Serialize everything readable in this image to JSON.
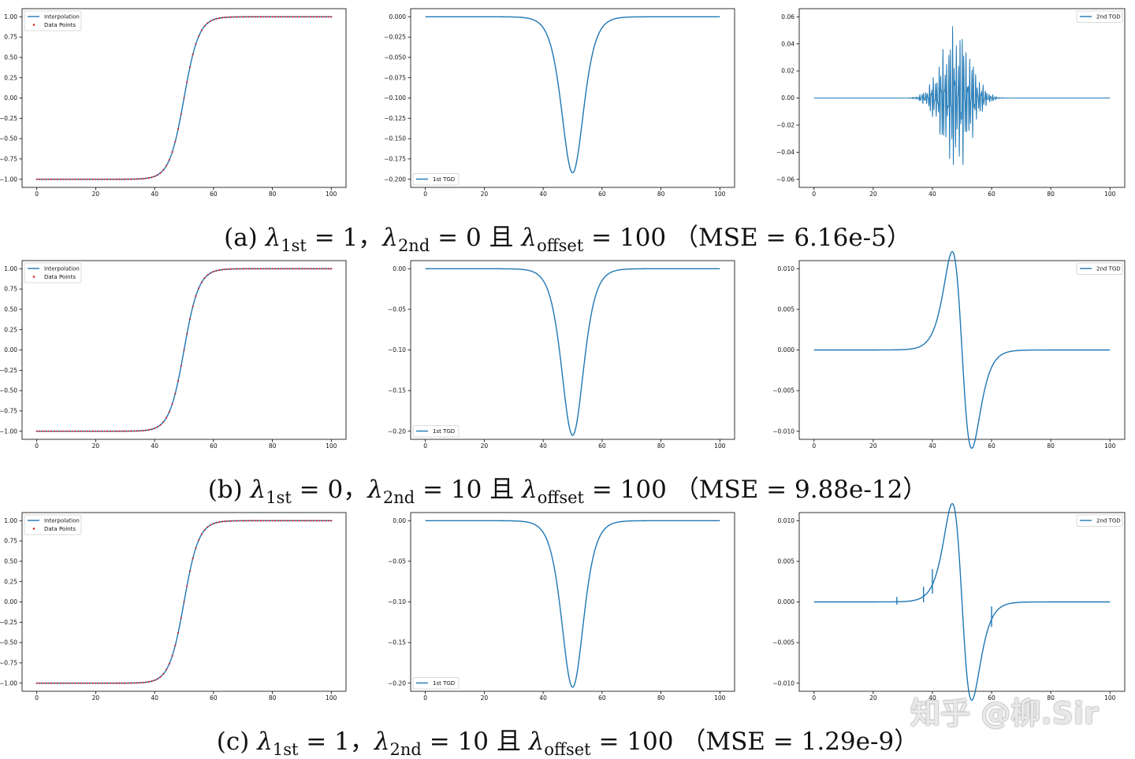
{
  "colors": {
    "line": "#1f77b4",
    "points": "#d62728",
    "axis": "#000000"
  },
  "captions": [
    {
      "label": "(a)",
      "l1": "1",
      "l2": "0",
      "lo": "100",
      "mse": "6.16e-5"
    },
    {
      "label": "(b)",
      "l1": "0",
      "l2": "10",
      "lo": "100",
      "mse": "9.88e-12"
    },
    {
      "label": "(c)",
      "l1": "1",
      "l2": "10",
      "lo": "100",
      "mse": "1.29e-9"
    }
  ],
  "caption_text": {
    "lambda": "λ",
    "sub_1st": "1st",
    "sub_2nd": "2nd",
    "sub_offset": "offset",
    "eq": " = ",
    "comma": "，",
    "and": " 且 ",
    "mse_open": " （MSE = ",
    "mse_close": "）"
  },
  "watermark": "知乎 @柳.Sir",
  "chart_data": [
    {
      "id": "a-interp",
      "type": "line+scatter",
      "x_range": [
        0,
        100
      ],
      "xticks": [
        "0",
        "20",
        "40",
        "60",
        "80",
        "100"
      ],
      "yticks": [
        "1.00",
        "0.75",
        "0.50",
        "0.25",
        "0.00",
        "−0.25",
        "−0.50",
        "−0.75",
        "−1.00"
      ],
      "ylim": [
        -1.0,
        1.0
      ],
      "legend": {
        "position": "top-left",
        "entries": [
          "Interpolation",
          "Data Points"
        ]
      },
      "series": [
        {
          "name": "Interpolation",
          "kind": "tanh",
          "center": 50,
          "scale": 5
        },
        {
          "name": "Data Points",
          "kind": "points",
          "n": 101
        }
      ]
    },
    {
      "id": "a-1st",
      "type": "line",
      "x_range": [
        0,
        100
      ],
      "xticks": [
        "0",
        "20",
        "40",
        "60",
        "80",
        "100"
      ],
      "yticks": [
        "0.000",
        "−0.025",
        "−0.050",
        "−0.075",
        "−0.100",
        "−0.125",
        "−0.150",
        "−0.175",
        "−0.200"
      ],
      "ylim": [
        -0.2,
        0.0
      ],
      "legend": {
        "position": "bottom-left",
        "entries": [
          "1st TGD"
        ]
      },
      "series": [
        {
          "name": "1st TGD",
          "kind": "sech2",
          "center": 50,
          "scale": 5,
          "amp": -0.192
        }
      ]
    },
    {
      "id": "a-2nd",
      "type": "line",
      "x_range": [
        0,
        100
      ],
      "xticks": [
        "0",
        "20",
        "40",
        "60",
        "80",
        "100"
      ],
      "yticks": [
        "0.06",
        "0.04",
        "0.02",
        "0.00",
        "−0.02",
        "−0.04",
        "−0.06"
      ],
      "ylim": [
        -0.06,
        0.06
      ],
      "legend": {
        "position": "top-right",
        "entries": [
          "2nd TGD"
        ]
      },
      "series": [
        {
          "name": "2nd TGD",
          "kind": "oscillation",
          "center": 48,
          "envelope_scale": 7,
          "amp": 0.057
        }
      ]
    },
    {
      "id": "b-interp",
      "type": "line+scatter",
      "x_range": [
        0,
        100
      ],
      "xticks": [
        "0",
        "20",
        "40",
        "60",
        "80",
        "100"
      ],
      "yticks": [
        "1.00",
        "0.75",
        "0.50",
        "0.25",
        "0.00",
        "−0.25",
        "−0.50",
        "−0.75",
        "−1.00"
      ],
      "ylim": [
        -1.0,
        1.0
      ],
      "legend": {
        "position": "top-left",
        "entries": [
          "Interpolation",
          "Data Points"
        ]
      },
      "series": [
        {
          "name": "Interpolation",
          "kind": "tanh",
          "center": 50,
          "scale": 5
        },
        {
          "name": "Data Points",
          "kind": "points",
          "n": 101
        }
      ]
    },
    {
      "id": "b-1st",
      "type": "line",
      "x_range": [
        0,
        100
      ],
      "xticks": [
        "0",
        "20",
        "40",
        "60",
        "80",
        "100"
      ],
      "yticks": [
        "0.00",
        "−0.05",
        "−0.10",
        "−0.15",
        "−0.20"
      ],
      "ylim": [
        -0.2,
        0.0
      ],
      "legend": {
        "position": "bottom-left",
        "entries": [
          "1st TGD"
        ]
      },
      "series": [
        {
          "name": "1st TGD",
          "kind": "sech2",
          "center": 50,
          "scale": 5,
          "amp": -0.205
        }
      ]
    },
    {
      "id": "b-2nd",
      "type": "line",
      "x_range": [
        0,
        100
      ],
      "xticks": [
        "0",
        "20",
        "40",
        "60",
        "80",
        "100"
      ],
      "yticks": [
        "0.010",
        "0.005",
        "0.000",
        "−0.005",
        "−0.010"
      ],
      "ylim": [
        -0.01,
        0.01
      ],
      "legend": {
        "position": "top-right",
        "entries": [
          "2nd TGD"
        ]
      },
      "series": [
        {
          "name": "2nd TGD",
          "kind": "dsech2",
          "center": 50,
          "scale": 5,
          "peak": 0.0121
        }
      ]
    },
    {
      "id": "c-interp",
      "type": "line+scatter",
      "x_range": [
        0,
        100
      ],
      "xticks": [
        "0",
        "20",
        "40",
        "60",
        "80",
        "100"
      ],
      "yticks": [
        "1.00",
        "0.75",
        "0.50",
        "0.25",
        "0.00",
        "−0.25",
        "−0.50",
        "−0.75",
        "−1.00"
      ],
      "ylim": [
        -1.0,
        1.0
      ],
      "legend": {
        "position": "top-left",
        "entries": [
          "Interpolation",
          "Data Points"
        ]
      },
      "series": [
        {
          "name": "Interpolation",
          "kind": "tanh",
          "center": 50,
          "scale": 5
        },
        {
          "name": "Data Points",
          "kind": "points",
          "n": 101
        }
      ]
    },
    {
      "id": "c-1st",
      "type": "line",
      "x_range": [
        0,
        100
      ],
      "xticks": [
        "0",
        "20",
        "40",
        "60",
        "80",
        "100"
      ],
      "yticks": [
        "0.00",
        "−0.05",
        "−0.10",
        "−0.15",
        "−0.20"
      ],
      "ylim": [
        -0.2,
        0.0
      ],
      "legend": {
        "position": "bottom-left",
        "entries": [
          "1st TGD"
        ]
      },
      "series": [
        {
          "name": "1st TGD",
          "kind": "sech2",
          "center": 50,
          "scale": 5,
          "amp": -0.205
        }
      ]
    },
    {
      "id": "c-2nd",
      "type": "line",
      "x_range": [
        0,
        100
      ],
      "xticks": [
        "0",
        "20",
        "40",
        "60",
        "80",
        "100"
      ],
      "yticks": [
        "0.010",
        "0.005",
        "0.000",
        "−0.005",
        "−0.010"
      ],
      "ylim": [
        -0.01,
        0.01
      ],
      "legend": {
        "position": "top-right",
        "entries": [
          "2nd TGD"
        ]
      },
      "series": [
        {
          "name": "2nd TGD",
          "kind": "dsech2",
          "center": 50,
          "scale": 5,
          "peak": 0.0121,
          "spikes": [
            {
              "x": 28,
              "amp": 0.0002
            },
            {
              "x": 37,
              "amp": 0.0008
            },
            {
              "x": 40,
              "amp": 0.0015
            },
            {
              "x": 60,
              "amp": 0.0012
            }
          ]
        }
      ]
    }
  ]
}
